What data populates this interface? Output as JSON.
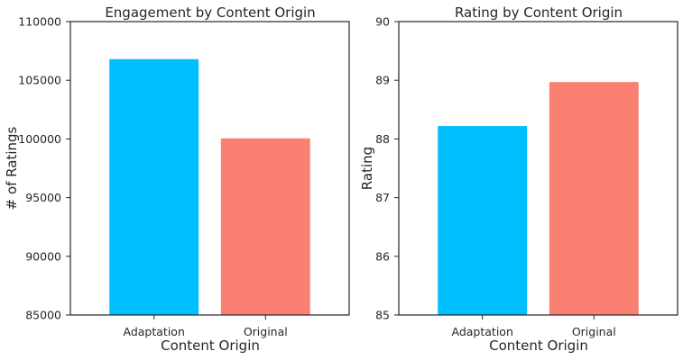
{
  "chart_data": [
    {
      "type": "bar",
      "title": "Engagement by Content Origin",
      "xlabel": "Content Origin",
      "ylabel": "# of Ratings",
      "categories": [
        "Adaptation",
        "Original"
      ],
      "values": [
        106800,
        100050
      ],
      "colors": [
        "#00bfff",
        "#fa8072"
      ],
      "ylim": [
        85000,
        110000
      ],
      "yticks": [
        85000,
        90000,
        95000,
        100000,
        105000,
        110000
      ],
      "grid": false
    },
    {
      "type": "bar",
      "title": "Rating by Content Origin",
      "xlabel": "Content Origin",
      "ylabel": "Rating",
      "categories": [
        "Adaptation",
        "Original"
      ],
      "values": [
        88.22,
        88.97
      ],
      "colors": [
        "#00bfff",
        "#fa8072"
      ],
      "ylim": [
        85,
        90
      ],
      "yticks": [
        85,
        86,
        87,
        88,
        89,
        90
      ],
      "grid": false
    }
  ]
}
